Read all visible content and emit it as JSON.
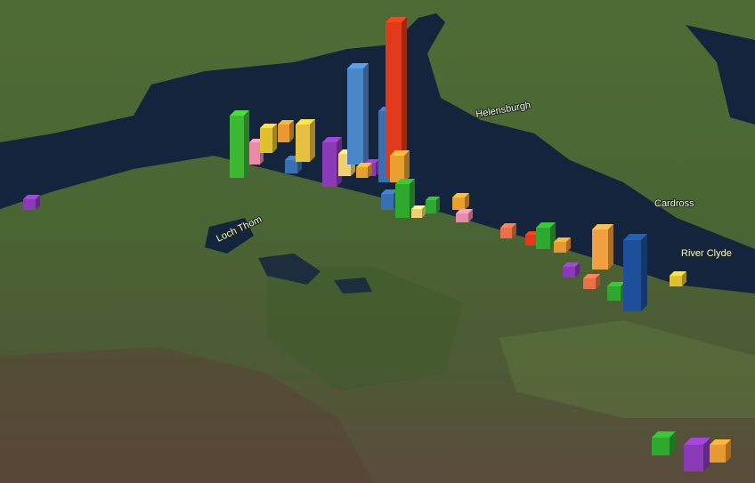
{
  "map": {
    "labels": {
      "river": "River Clyde",
      "town_north": "Helensburgh",
      "town_east": "Cardross",
      "loch": "Loch Thom"
    }
  }
}
